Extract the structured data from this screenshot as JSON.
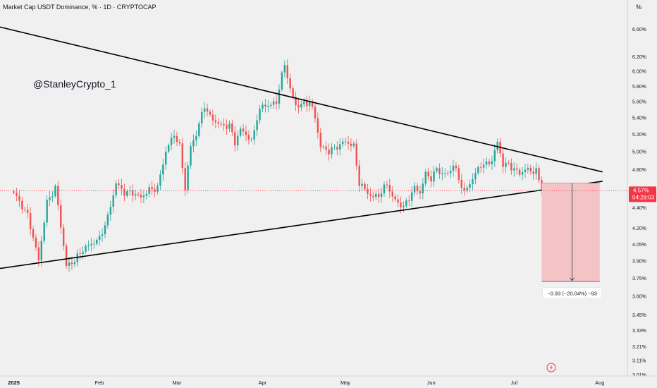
{
  "header": {
    "title": "Market Cap USDT Dominance, % · 1D · CRYPTOCAP"
  },
  "watermark": "@StanleyCrypto_1",
  "axis": {
    "unit": "%"
  },
  "price_label": {
    "value": "4.57%",
    "countdown": "04:28:03"
  },
  "measure": {
    "label": "−0.93 (−20.04%) −93"
  },
  "colors": {
    "up": "#26a69a",
    "down": "#ef5350",
    "price": "#f23645",
    "measure_fill": "#f4c3c6",
    "background": "#f0f0f0",
    "line": "#000000"
  },
  "icons": {
    "tv_logo": "lightning-icon"
  },
  "chart_data": {
    "type": "candlestick",
    "title": "Market Cap USDT Dominance, % · 1D · CRYPTOCAP",
    "yscale": "log",
    "ylim": [
      3.0,
      7.05
    ],
    "x_range_days": [
      -5,
      222
    ],
    "y_ticks": [
      {
        "v": 6.6,
        "label": "6.60%"
      },
      {
        "v": 6.2,
        "label": "6.20%"
      },
      {
        "v": 6.0,
        "label": "6.00%"
      },
      {
        "v": 5.8,
        "label": "5.80%"
      },
      {
        "v": 5.6,
        "label": "5.60%"
      },
      {
        "v": 5.4,
        "label": "5.40%"
      },
      {
        "v": 5.2,
        "label": "5.20%"
      },
      {
        "v": 5.0,
        "label": "5.00%"
      },
      {
        "v": 4.8,
        "label": "4.80%"
      },
      {
        "v": 4.4,
        "label": "4.40%"
      },
      {
        "v": 4.2,
        "label": "4.20%"
      },
      {
        "v": 4.05,
        "label": "4.05%"
      },
      {
        "v": 3.9,
        "label": "3.90%"
      },
      {
        "v": 3.75,
        "label": "3.75%"
      },
      {
        "v": 3.6,
        "label": "3.60%"
      },
      {
        "v": 3.45,
        "label": "3.45%"
      },
      {
        "v": 3.33,
        "label": "3.33%"
      },
      {
        "v": 3.21,
        "label": "3.21%"
      },
      {
        "v": 3.11,
        "label": "3.11%"
      },
      {
        "v": 3.01,
        "label": "3.01%"
      }
    ],
    "x_ticks": [
      {
        "day": 0,
        "label": "2025",
        "bold": true
      },
      {
        "day": 31,
        "label": "Feb"
      },
      {
        "day": 59,
        "label": "Mar"
      },
      {
        "day": 90,
        "label": "Apr"
      },
      {
        "day": 120,
        "label": "May"
      },
      {
        "day": 151,
        "label": "Jun"
      },
      {
        "day": 181,
        "label": "Jul"
      },
      {
        "day": 212,
        "label": "Aug"
      }
    ],
    "current_price": 4.57,
    "anchors": [
      [
        0,
        4.55
      ],
      [
        5,
        4.32
      ],
      [
        9,
        3.9
      ],
      [
        12,
        4.45
      ],
      [
        15,
        4.6
      ],
      [
        17,
        4.22
      ],
      [
        19,
        3.85
      ],
      [
        22,
        3.9
      ],
      [
        25,
        4.0
      ],
      [
        28,
        4.05
      ],
      [
        31,
        4.1
      ],
      [
        34,
        4.3
      ],
      [
        37,
        4.65
      ],
      [
        40,
        4.55
      ],
      [
        43,
        4.55
      ],
      [
        46,
        4.5
      ],
      [
        49,
        4.58
      ],
      [
        52,
        4.6
      ],
      [
        55,
        5.0
      ],
      [
        58,
        5.2
      ],
      [
        60,
        5.05
      ],
      [
        62,
        4.6
      ],
      [
        64,
        5.05
      ],
      [
        66,
        5.2
      ],
      [
        69,
        5.55
      ],
      [
        71,
        5.4
      ],
      [
        73,
        5.35
      ],
      [
        75,
        5.3
      ],
      [
        78,
        5.3
      ],
      [
        80,
        5.1
      ],
      [
        82,
        5.25
      ],
      [
        84,
        5.2
      ],
      [
        86,
        5.1
      ],
      [
        88,
        5.4
      ],
      [
        90,
        5.55
      ],
      [
        93,
        5.55
      ],
      [
        95,
        5.6
      ],
      [
        98,
        6.1
      ],
      [
        100,
        5.75
      ],
      [
        102,
        5.55
      ],
      [
        104,
        5.55
      ],
      [
        107,
        5.6
      ],
      [
        109,
        5.4
      ],
      [
        111,
        5.05
      ],
      [
        114,
        5.0
      ],
      [
        117,
        5.05
      ],
      [
        119,
        5.1
      ],
      [
        121,
        5.1
      ],
      [
        123,
        5.05
      ],
      [
        125,
        4.65
      ],
      [
        128,
        4.55
      ],
      [
        130,
        4.5
      ],
      [
        133,
        4.55
      ],
      [
        135,
        4.65
      ],
      [
        137,
        4.5
      ],
      [
        139,
        4.45
      ],
      [
        141,
        4.4
      ],
      [
        143,
        4.5
      ],
      [
        145,
        4.6
      ],
      [
        147,
        4.55
      ],
      [
        149,
        4.75
      ],
      [
        151,
        4.7
      ],
      [
        153,
        4.8
      ],
      [
        155,
        4.75
      ],
      [
        157,
        4.75
      ],
      [
        159,
        4.85
      ],
      [
        161,
        4.7
      ],
      [
        163,
        4.55
      ],
      [
        165,
        4.65
      ],
      [
        167,
        4.75
      ],
      [
        169,
        4.85
      ],
      [
        171,
        4.85
      ],
      [
        173,
        4.9
      ],
      [
        175,
        5.1
      ],
      [
        177,
        4.85
      ],
      [
        179,
        4.85
      ],
      [
        181,
        4.8
      ],
      [
        183,
        4.75
      ],
      [
        185,
        4.8
      ],
      [
        187,
        4.78
      ],
      [
        189,
        4.78
      ],
      [
        191,
        4.57
      ]
    ],
    "trendlines": [
      {
        "name": "upper",
        "points": [
          [
            -7,
            6.65
          ],
          [
            213,
            4.77
          ]
        ]
      },
      {
        "name": "lower",
        "points": [
          [
            -8,
            3.82
          ],
          [
            213,
            4.67
          ]
        ]
      }
    ],
    "measure": {
      "day_start": 191,
      "day_end": 212,
      "from": 4.65,
      "to": 3.72,
      "label": "−0.93 (−20.04%) −93"
    }
  }
}
